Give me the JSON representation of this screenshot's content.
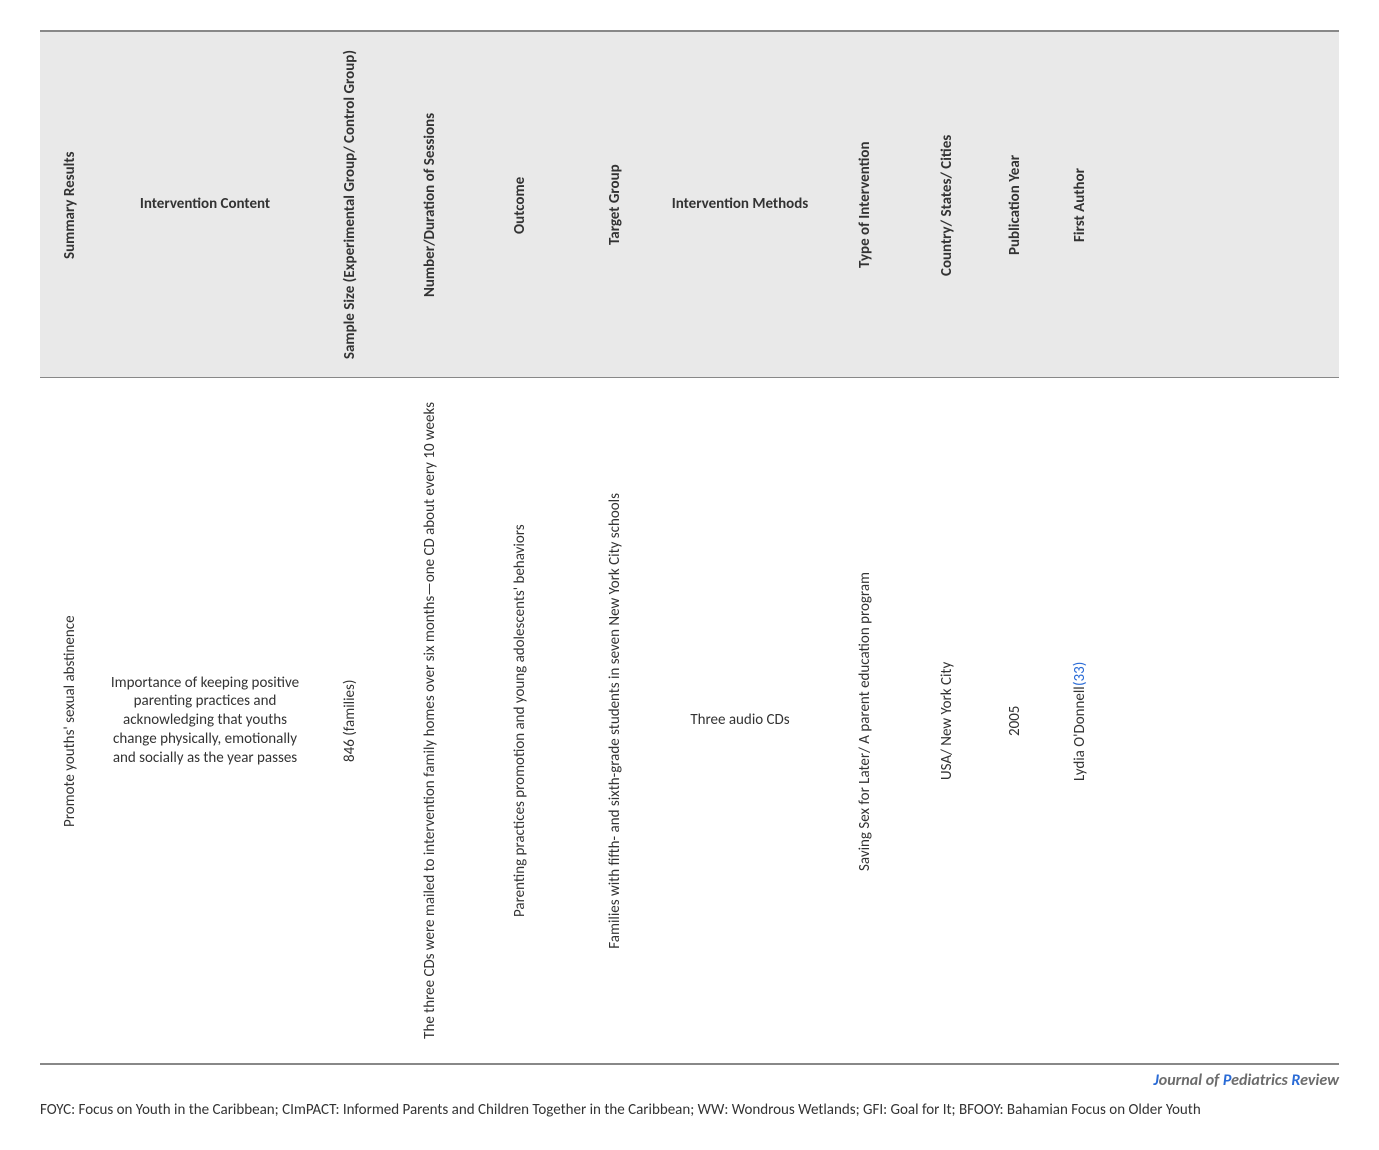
{
  "table": {
    "columns": [
      {
        "key": "summary",
        "label": "Summary Results",
        "width": "c-summary",
        "vertical": true
      },
      {
        "key": "content",
        "label": "Intervention Content",
        "width": "c-content",
        "vertical": false
      },
      {
        "key": "sample",
        "label": "Sample Size (Experimental Group/ Control Group)",
        "width": "c-sample",
        "vertical": true
      },
      {
        "key": "sessions",
        "label": "Number/Duration of Sessions",
        "width": "c-sessions",
        "vertical": true
      },
      {
        "key": "outcome",
        "label": "Outcome",
        "width": "c-outcome",
        "vertical": true
      },
      {
        "key": "target",
        "label": "Target Group",
        "width": "c-target",
        "vertical": true
      },
      {
        "key": "methods",
        "label": "Intervention Methods",
        "width": "c-methods",
        "vertical": false
      },
      {
        "key": "type",
        "label": "Type of Intervention",
        "width": "c-type",
        "vertical": true
      },
      {
        "key": "country",
        "label": "Country/ States/ Cities",
        "width": "c-country",
        "vertical": true
      },
      {
        "key": "year",
        "label": "Publication Year",
        "width": "c-year",
        "vertical": true
      },
      {
        "key": "author",
        "label": "First Author",
        "width": "c-author",
        "vertical": true
      }
    ],
    "row": {
      "summary": "Promote youths' sexual abstinence",
      "content": "Importance of keeping positive parenting practices and acknowledging that youths change physically, emotionally and socially as the year passes",
      "sample": "846 (families)",
      "sessions": "The three CDs were mailed to intervention family homes over six months—one CD about every 10 weeks",
      "outcome": "Parenting practices promotion and young adolescents' behaviors",
      "target": "Families with fifth- and sixth-grade students in seven New York City schools",
      "methods": "Three audio CDs",
      "type": "Saving Sex for Later/ A parent education program",
      "country": "USA/ New York City",
      "year": "2005",
      "author": "Lydia O'Donnell ",
      "author_ref": "(33)"
    }
  },
  "journal": {
    "j1": "J",
    "j2": "ournal of ",
    "j3": "P",
    "j4": "ediatrics ",
    "j5": "R",
    "j6": "eview"
  },
  "footnote": "FOYC: Focus on Youth in the Caribbean; CImPACT: Informed Parents and Children Together in the Caribbean; WW: Wondrous Wetlands; GFI: Goal for It; BFOOY: Bahamian Focus on Older Youth",
  "colors": {
    "header_bg": "#e9e9e9",
    "border": "#888888",
    "text": "#333333",
    "link": "#2a6bd6",
    "muted": "#6c6c6c",
    "bg": "#ffffff"
  }
}
